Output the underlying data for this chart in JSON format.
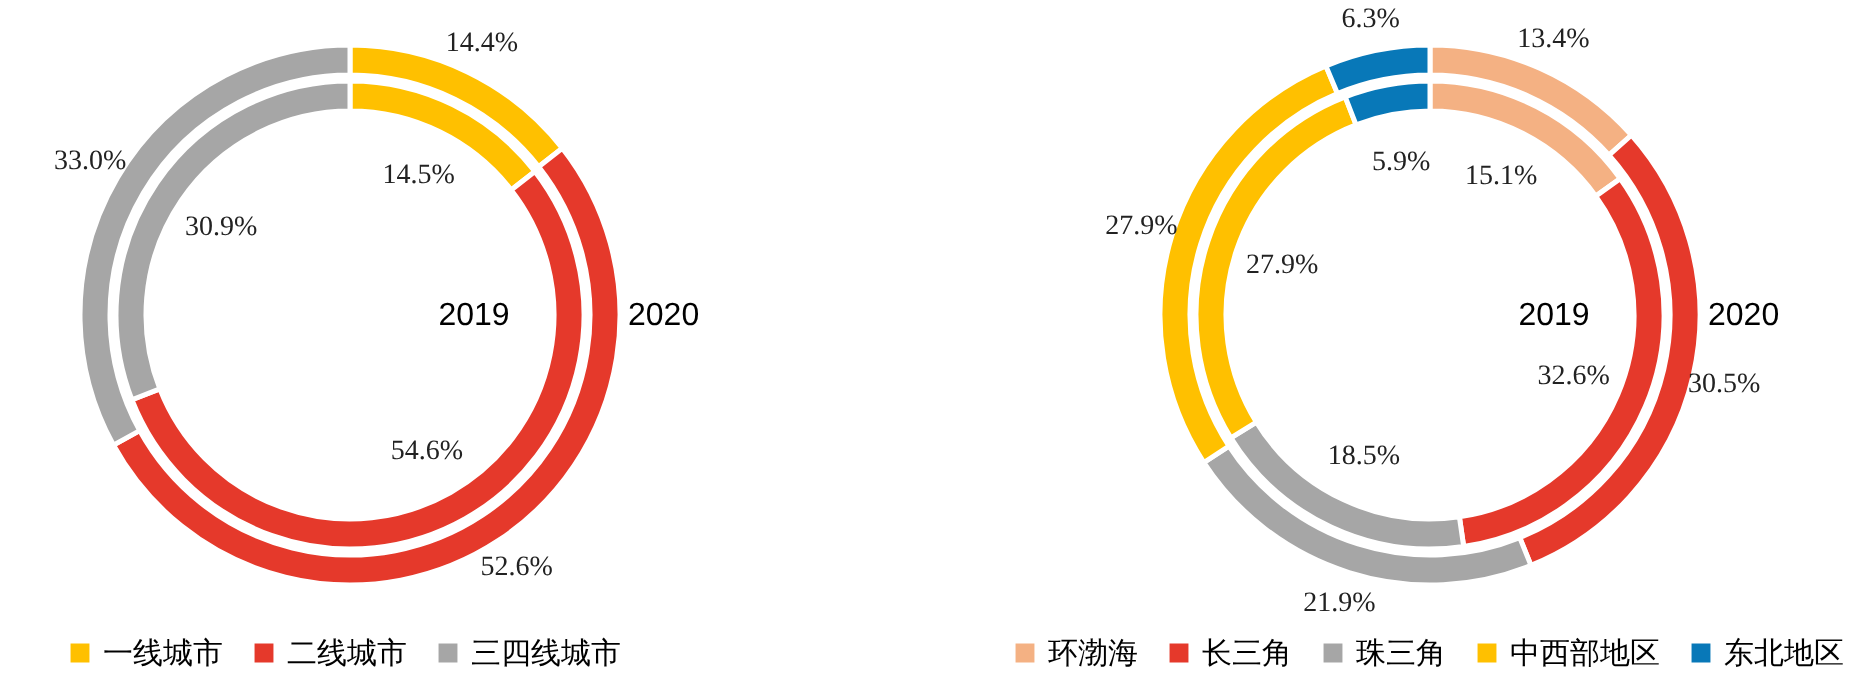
{
  "chart_data": [
    {
      "type": "donut",
      "categories": [
        "一线城市",
        "二线城市",
        "三四线城市"
      ],
      "colors": [
        "#ffc000",
        "#e5392b",
        "#a6a6a6"
      ],
      "legend": "bottom",
      "series": [
        {
          "name": "2019",
          "values": [
            14.5,
            54.6,
            30.9
          ],
          "value_labels": [
            "14.5%",
            "54.6%",
            "30.9%"
          ]
        },
        {
          "name": "2020",
          "values": [
            14.4,
            52.6,
            33.0
          ],
          "value_labels": [
            "14.4%",
            "52.6%",
            "33.0%"
          ]
        }
      ]
    },
    {
      "type": "donut",
      "categories": [
        "环渤海",
        "长三角",
        "珠三角",
        "中西部地区",
        "东北地区"
      ],
      "colors": [
        "#f4b183",
        "#e5392b",
        "#a6a6a6",
        "#ffc000",
        "#0878b8"
      ],
      "legend": "bottom",
      "series": [
        {
          "name": "2019",
          "values": [
            15.1,
            32.6,
            18.5,
            27.9,
            5.9
          ],
          "value_labels": [
            "15.1%",
            "32.6%",
            "18.5%",
            "27.9%",
            "5.9%"
          ]
        },
        {
          "name": "2020",
          "values": [
            13.4,
            30.5,
            21.9,
            27.9,
            6.3
          ],
          "value_labels": [
            "13.4%",
            "30.5%",
            "21.9%",
            "27.9%",
            "6.3%"
          ]
        }
      ]
    }
  ]
}
